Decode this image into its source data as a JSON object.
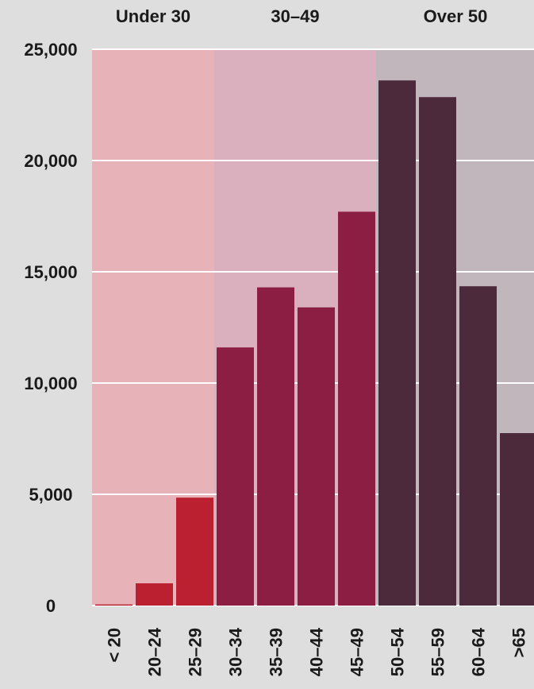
{
  "chart_data": {
    "type": "bar",
    "categories": [
      "< 20",
      "20–24",
      "25–29",
      "30–34",
      "35–39",
      "40–44",
      "45–49",
      "50–54",
      "55–59",
      "60–64",
      ">65"
    ],
    "values": [
      50,
      1000,
      4850,
      11600,
      14300,
      13400,
      17700,
      23600,
      22850,
      14350,
      7750
    ],
    "ylim": [
      0,
      25000
    ],
    "yticks": [
      0,
      5000,
      10000,
      15000,
      20000,
      25000
    ],
    "ytick_labels": [
      "0",
      "5,000",
      "10,000",
      "15,000",
      "20,000",
      "25,000"
    ],
    "grid": true,
    "groups": [
      {
        "label": "Under 30",
        "categories": [
          "< 20",
          "20–24",
          "25–29"
        ],
        "band_color": "#e8b3b8",
        "bar_color": "#bb2030"
      },
      {
        "label": "30–49",
        "categories": [
          "30–34",
          "35–39",
          "40–44",
          "45–49"
        ],
        "band_color": "#dbb0be",
        "bar_color": "#8b1e42"
      },
      {
        "label": "Over 50",
        "categories": [
          "50–54",
          "55–59",
          "60–64",
          ">65"
        ],
        "band_color": "#c2b6bd",
        "bar_color": "#4d2a3b"
      }
    ],
    "title": "",
    "xlabel": "",
    "ylabel": ""
  }
}
